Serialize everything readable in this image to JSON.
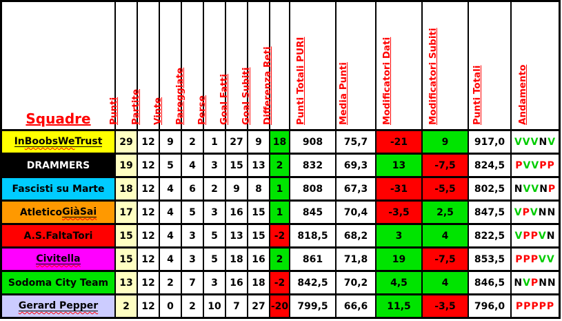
{
  "table": {
    "header": {
      "squadre_label": "Squadre",
      "columns": [
        "Punti",
        "Partite",
        "Vinte",
        "Pareggiate",
        "Perse",
        "Goal Fatti",
        "Goal Subiti",
        "Differenza Reti",
        "Punti Totali PURI",
        "Media Punti",
        "Modificatori Dati",
        "Modificatori Subiti",
        "Punti Totali",
        "Andamento"
      ]
    },
    "colors": {
      "header_text": "#FF0000",
      "grid_line": "#000000",
      "punti_column_bg": "#FFFFC2",
      "positive_cell_bg": "#00E400",
      "negative_cell_bg": "#FF0000",
      "letter_V": "#00CC00",
      "letter_P": "#FF0000",
      "letter_N": "#000000"
    },
    "signed_columns": [
      "differenza_reti",
      "modificatori_dati",
      "modificatori_subiti"
    ],
    "teams": [
      {
        "bg": "#FFFF00",
        "fg": "#000000",
        "name_segments": [
          {
            "t": "In ",
            "u": true,
            "w": false
          },
          {
            "t": "Boobs",
            "u": true,
            "w": true
          },
          {
            "t": " ",
            "u": true,
            "w": false
          },
          {
            "t": "We",
            "u": true,
            "w": true
          },
          {
            "t": " Trust",
            "u": true,
            "w": false
          }
        ],
        "cells": {
          "punti": "29",
          "partite": "12",
          "vinte": "9",
          "pareggiate": "2",
          "perse": "1",
          "goal_fatti": "27",
          "goal_subiti": "9",
          "differenza_reti": "18",
          "punti_totali_puri": "908",
          "media_punti": "75,7",
          "modificatori_dati": "-21",
          "modificatori_subiti": "9",
          "punti_totali": "917,0",
          "andamento": "VVVNV"
        }
      },
      {
        "bg": "#000000",
        "fg": "#FFFFFF",
        "name_segments": [
          {
            "t": "DRAMMERS",
            "u": false,
            "w": false
          }
        ],
        "cells": {
          "punti": "19",
          "partite": "12",
          "vinte": "5",
          "pareggiate": "4",
          "perse": "3",
          "goal_fatti": "15",
          "goal_subiti": "13",
          "differenza_reti": "2",
          "punti_totali_puri": "832",
          "media_punti": "69,3",
          "modificatori_dati": "13",
          "modificatori_subiti": "-7,5",
          "punti_totali": "824,5",
          "andamento": "PVVPP"
        }
      },
      {
        "bg": "#00CCFF",
        "fg": "#000000",
        "name_segments": [
          {
            "t": "Fascisti su Marte",
            "u": false,
            "w": false
          }
        ],
        "cells": {
          "punti": "18",
          "partite": "12",
          "vinte": "4",
          "pareggiate": "6",
          "perse": "2",
          "goal_fatti": "9",
          "goal_subiti": "8",
          "differenza_reti": "1",
          "punti_totali_puri": "808",
          "media_punti": "67,3",
          "modificatori_dati": "-31",
          "modificatori_subiti": "-5,5",
          "punti_totali": "802,5",
          "andamento": "NVVNP"
        }
      },
      {
        "bg": "#FF9900",
        "fg": "#000000",
        "name_segments": [
          {
            "t": "Atletico ",
            "u": false,
            "w": false
          },
          {
            "t": "GiàSai",
            "u": true,
            "w": true
          }
        ],
        "cells": {
          "punti": "17",
          "partite": "12",
          "vinte": "4",
          "pareggiate": "5",
          "perse": "3",
          "goal_fatti": "16",
          "goal_subiti": "15",
          "differenza_reti": "1",
          "punti_totali_puri": "845",
          "media_punti": "70,4",
          "modificatori_dati": "-3,5",
          "modificatori_subiti": "2,5",
          "punti_totali": "847,5",
          "andamento": "VPVNN"
        }
      },
      {
        "bg": "#FF0000",
        "fg": "#000000",
        "name_segments": [
          {
            "t": "A.S.FaltaTori",
            "u": false,
            "w": false
          }
        ],
        "cells": {
          "punti": "15",
          "partite": "12",
          "vinte": "4",
          "pareggiate": "3",
          "perse": "5",
          "goal_fatti": "13",
          "goal_subiti": "15",
          "differenza_reti": "-2",
          "punti_totali_puri": "818,5",
          "media_punti": "68,2",
          "modificatori_dati": "3",
          "modificatori_subiti": "4",
          "punti_totali": "822,5",
          "andamento": "VPPVN"
        }
      },
      {
        "bg": "#FF00FF",
        "fg": "#000000",
        "name_segments": [
          {
            "t": "Civitella",
            "u": true,
            "w": true
          }
        ],
        "cells": {
          "punti": "15",
          "partite": "12",
          "vinte": "4",
          "pareggiate": "3",
          "perse": "5",
          "goal_fatti": "18",
          "goal_subiti": "16",
          "differenza_reti": "2",
          "punti_totali_puri": "861",
          "media_punti": "71,8",
          "modificatori_dati": "19",
          "modificatori_subiti": "-7,5",
          "punti_totali": "853,5",
          "andamento": "PPPVV"
        }
      },
      {
        "bg": "#00E400",
        "fg": "#000000",
        "name_segments": [
          {
            "t": "Sodoma City Team",
            "u": false,
            "w": false
          }
        ],
        "cells": {
          "punti": "13",
          "partite": "12",
          "vinte": "2",
          "pareggiate": "7",
          "perse": "3",
          "goal_fatti": "16",
          "goal_subiti": "18",
          "differenza_reti": "-2",
          "punti_totali_puri": "842,5",
          "media_punti": "70,2",
          "modificatori_dati": "4,5",
          "modificatori_subiti": "4",
          "punti_totali": "846,5",
          "andamento": "NVPNN"
        }
      },
      {
        "bg": "#CCCCFF",
        "fg": "#000000",
        "name_segments": [
          {
            "t": "Gerard Pepper",
            "u": true,
            "w": true
          }
        ],
        "cells": {
          "punti": "2",
          "partite": "12",
          "vinte": "0",
          "pareggiate": "2",
          "perse": "10",
          "goal_fatti": "7",
          "goal_subiti": "27",
          "differenza_reti": "-20",
          "punti_totali_puri": "799,5",
          "media_punti": "66,6",
          "modificatori_dati": "11,5",
          "modificatori_subiti": "-3,5",
          "punti_totali": "796,0",
          "andamento": "PPPPP"
        }
      }
    ]
  }
}
